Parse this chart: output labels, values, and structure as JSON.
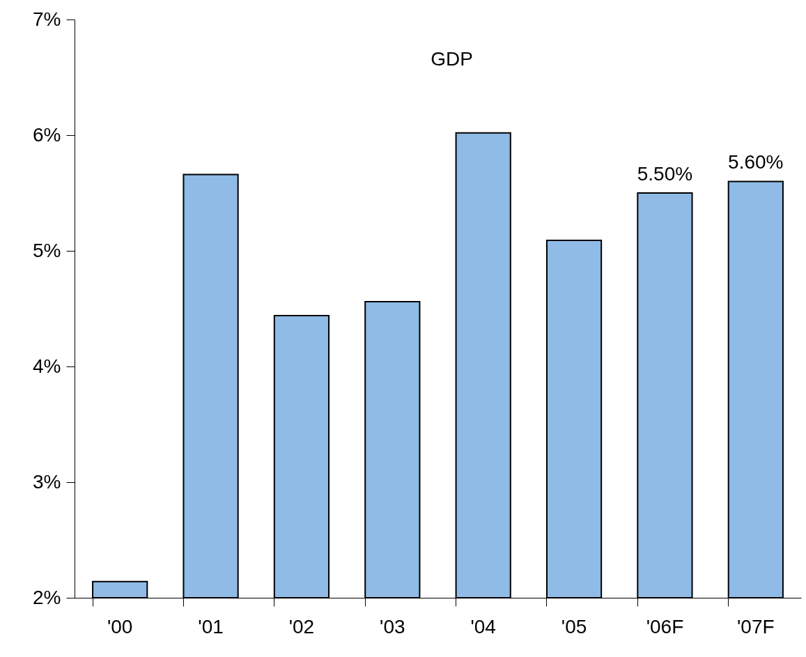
{
  "chart_data": {
    "type": "bar",
    "title": "GDP",
    "categories": [
      "'00",
      "'01",
      "'02",
      "'03",
      "'04",
      "'05",
      "'06F",
      "'07F"
    ],
    "values": [
      2.14,
      5.66,
      4.44,
      4.56,
      6.02,
      5.09,
      5.5,
      5.6
    ],
    "value_labels": [
      null,
      null,
      null,
      null,
      null,
      null,
      "5.50%",
      "5.60%"
    ],
    "color": "#8fbbe6",
    "ylim": [
      2,
      7
    ],
    "yticks": [
      {
        "value": 2,
        "label": "2%"
      },
      {
        "value": 3,
        "label": "3%"
      },
      {
        "value": 4,
        "label": "4%"
      },
      {
        "value": 5,
        "label": "5%"
      },
      {
        "value": 6,
        "label": "6%"
      },
      {
        "value": 7,
        "label": "7%"
      }
    ],
    "grid": false
  }
}
